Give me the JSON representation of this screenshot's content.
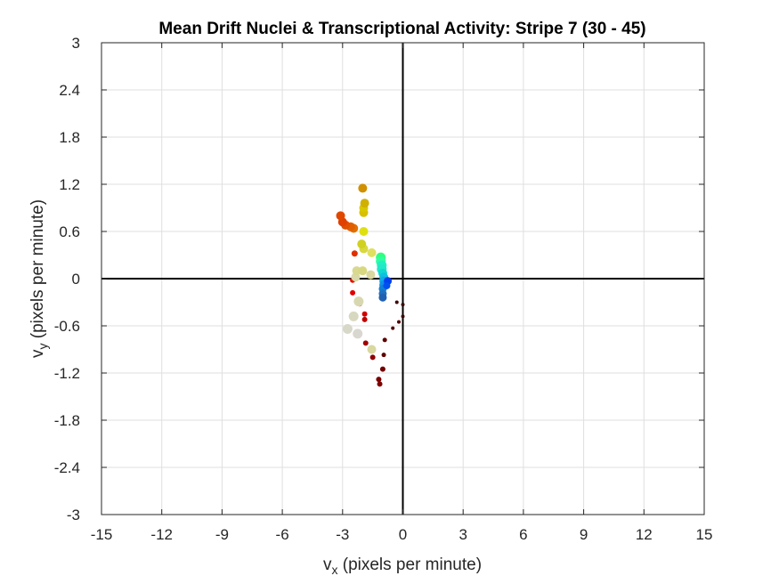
{
  "chart_data": {
    "type": "scatter",
    "title": "Mean Drift Nuclei & Transcriptional Activity: Stripe 7 (30 - 45)",
    "xlabel_main": "v",
    "xlabel_sub": "x",
    "xlabel_rest": " (pixels per minute)",
    "ylabel_main": "v",
    "ylabel_sub": "y",
    "ylabel_rest": " (pixels per minute)",
    "xlim": [
      -15,
      15
    ],
    "ylim": [
      -3,
      3
    ],
    "xticks": [
      -15,
      -12,
      -9,
      -6,
      -3,
      0,
      3,
      6,
      9,
      12,
      15
    ],
    "yticks": [
      -3,
      -2.4,
      -1.8,
      -1.2,
      -0.6,
      0,
      0.6,
      1.2,
      1.8,
      2.4,
      3
    ],
    "grid": true,
    "points": [
      {
        "x": -0.3,
        "y": -0.3,
        "r": 2,
        "color": "#400000"
      },
      {
        "x": 0.0,
        "y": -0.33,
        "r": 2,
        "color": "#400000"
      },
      {
        "x": 0.0,
        "y": -0.48,
        "r": 2,
        "color": "#400000"
      },
      {
        "x": -0.2,
        "y": -0.55,
        "r": 2,
        "color": "#4a0000"
      },
      {
        "x": -0.5,
        "y": -0.63,
        "r": 2,
        "color": "#500000"
      },
      {
        "x": -0.9,
        "y": -0.78,
        "r": 2.5,
        "color": "#5a0000"
      },
      {
        "x": -0.95,
        "y": -0.97,
        "r": 2.5,
        "color": "#600000"
      },
      {
        "x": -1.0,
        "y": -1.15,
        "r": 3,
        "color": "#700000"
      },
      {
        "x": -1.2,
        "y": -1.28,
        "r": 3,
        "color": "#7a0000"
      },
      {
        "x": -1.15,
        "y": -1.34,
        "r": 3,
        "color": "#800000"
      },
      {
        "x": -1.5,
        "y": -1.0,
        "r": 3,
        "color": "#900000"
      },
      {
        "x": -1.85,
        "y": -0.82,
        "r": 3,
        "color": "#a00000"
      },
      {
        "x": -1.9,
        "y": -0.52,
        "r": 3,
        "color": "#c00000"
      },
      {
        "x": -1.9,
        "y": -0.45,
        "r": 3,
        "color": "#d00000"
      },
      {
        "x": -2.15,
        "y": -0.32,
        "r": 3,
        "color": "#d80000"
      },
      {
        "x": -2.5,
        "y": -0.18,
        "r": 3,
        "color": "#e00000"
      },
      {
        "x": -2.5,
        "y": -0.02,
        "r": 3,
        "color": "#e81000"
      },
      {
        "x": -2.4,
        "y": 0.32,
        "r": 3.5,
        "color": "#e03000"
      },
      {
        "x": -1.55,
        "y": -0.9,
        "r": 5,
        "color": "#d8d8a0"
      },
      {
        "x": -2.25,
        "y": -0.7,
        "r": 5.5,
        "color": "#d8d8d0"
      },
      {
        "x": -2.75,
        "y": -0.64,
        "r": 5.5,
        "color": "#d8d8c8"
      },
      {
        "x": -2.45,
        "y": -0.48,
        "r": 5.5,
        "color": "#d8d8c0"
      },
      {
        "x": -2.2,
        "y": -0.29,
        "r": 5.5,
        "color": "#d8d8b0"
      },
      {
        "x": -2.35,
        "y": 0.02,
        "r": 5,
        "color": "#d8d8a8"
      },
      {
        "x": -2.3,
        "y": 0.1,
        "r": 5,
        "color": "#d8d890"
      },
      {
        "x": -2.0,
        "y": 0.1,
        "r": 5,
        "color": "#d8d880"
      },
      {
        "x": -1.6,
        "y": 0.05,
        "r": 5,
        "color": "#d8d8a0"
      },
      {
        "x": -1.55,
        "y": 0.33,
        "r": 5,
        "color": "#e0e060"
      },
      {
        "x": -1.95,
        "y": 0.38,
        "r": 5,
        "color": "#d8d840"
      },
      {
        "x": -2.05,
        "y": 0.44,
        "r": 5,
        "color": "#d0d020"
      },
      {
        "x": -1.95,
        "y": 0.6,
        "r": 5,
        "color": "#e0e010"
      },
      {
        "x": -1.95,
        "y": 0.84,
        "r": 5,
        "color": "#d8c000"
      },
      {
        "x": -1.95,
        "y": 0.9,
        "r": 5,
        "color": "#d8c800"
      },
      {
        "x": -1.9,
        "y": 0.96,
        "r": 5,
        "color": "#d0b000"
      },
      {
        "x": -2.0,
        "y": 1.15,
        "r": 5,
        "color": "#d09000"
      },
      {
        "x": -2.45,
        "y": 0.64,
        "r": 5,
        "color": "#e07000"
      },
      {
        "x": -2.6,
        "y": 0.66,
        "r": 5,
        "color": "#e06000"
      },
      {
        "x": -2.85,
        "y": 0.68,
        "r": 5,
        "color": "#e05000"
      },
      {
        "x": -3.0,
        "y": 0.72,
        "r": 5,
        "color": "#e04000"
      },
      {
        "x": -3.1,
        "y": 0.8,
        "r": 5,
        "color": "#e04800"
      },
      {
        "x": -1.1,
        "y": 0.27,
        "r": 5.5,
        "color": "#30ff80"
      },
      {
        "x": -1.1,
        "y": 0.22,
        "r": 5.5,
        "color": "#30ffa0"
      },
      {
        "x": -1.05,
        "y": 0.17,
        "r": 5.5,
        "color": "#20f0c0"
      },
      {
        "x": -1.05,
        "y": 0.12,
        "r": 5.5,
        "color": "#20e8c8"
      },
      {
        "x": -1.0,
        "y": 0.07,
        "r": 5,
        "color": "#10d8d0"
      },
      {
        "x": -0.95,
        "y": 0.02,
        "r": 5,
        "color": "#10c0e0"
      },
      {
        "x": -0.95,
        "y": -0.03,
        "r": 5,
        "color": "#10a8e8"
      },
      {
        "x": -0.95,
        "y": -0.08,
        "r": 5,
        "color": "#1090e8"
      },
      {
        "x": -1.0,
        "y": -0.13,
        "r": 4.5,
        "color": "#1080d8"
      },
      {
        "x": -1.0,
        "y": -0.19,
        "r": 4.5,
        "color": "#2070c0"
      },
      {
        "x": -1.0,
        "y": -0.24,
        "r": 4.5,
        "color": "#2060b0"
      },
      {
        "x": -0.75,
        "y": -0.03,
        "r": 4.5,
        "color": "#0040f0"
      },
      {
        "x": -0.8,
        "y": -0.09,
        "r": 4,
        "color": "#0050f0"
      }
    ]
  }
}
